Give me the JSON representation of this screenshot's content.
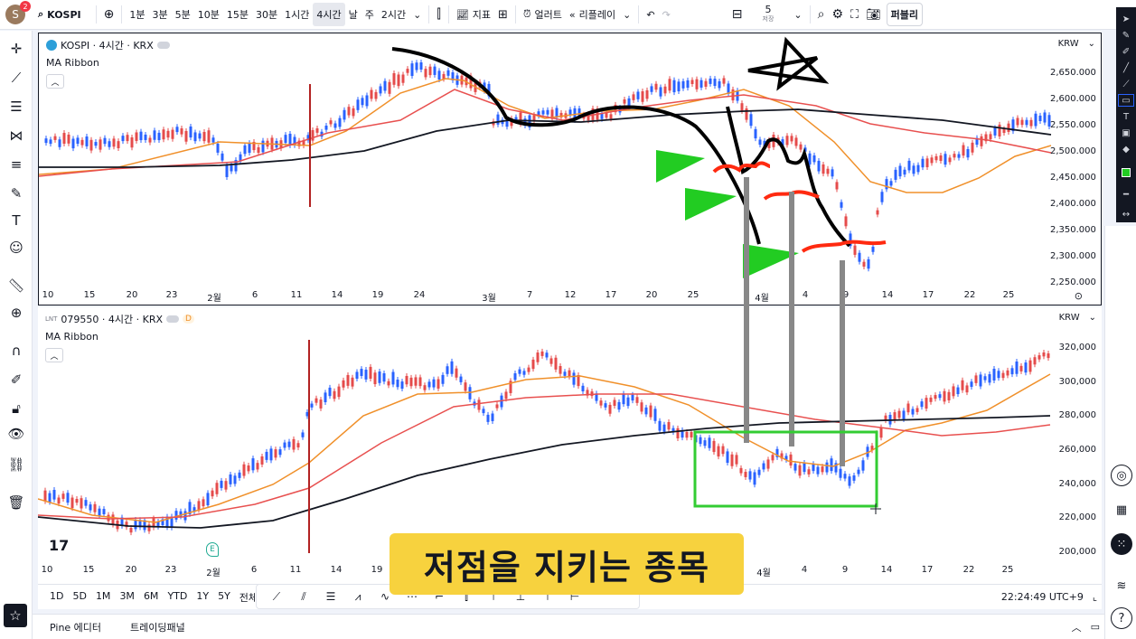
{
  "top": {
    "avatar_letter": "S",
    "notif_count": "2",
    "symbol": "KOSPI",
    "intervals": [
      "1분",
      "3분",
      "5분",
      "10분",
      "15분",
      "30분",
      "1시간",
      "4시간",
      "날",
      "주",
      "2시간"
    ],
    "active_interval": "4시간",
    "indicators_label": "지표",
    "alerts_label": "얼러트",
    "replay_label": "리플레이",
    "layout_num": "5",
    "layout_sub": "저장",
    "publish_label": "퍼블리"
  },
  "pane1": {
    "title": "KOSPI · 4시간 · KRX",
    "indicator": "MA Ribbon",
    "currency": "KRW",
    "yticks": [
      "2,650.000",
      "2,600.000",
      "2,550.000",
      "2,500.000",
      "2,450.000",
      "2,400.000",
      "2,350.000",
      "2,300.000",
      "2,250.000"
    ],
    "xticks": [
      "10",
      "15",
      "20",
      "23",
      "2월",
      "6",
      "11",
      "14",
      "19",
      "24",
      "3월",
      "7",
      "12",
      "17",
      "20",
      "25",
      "4월",
      "4",
      "9",
      "14",
      "17",
      "22",
      "25"
    ]
  },
  "pane2": {
    "title": "079550 · 4시간 · KRX",
    "badge": "D",
    "indicator": "MA Ribbon",
    "currency": "KRW",
    "yticks": [
      "320,000",
      "300,000",
      "280,000",
      "260,000",
      "240,000",
      "220,000",
      "200,000"
    ],
    "xticks": [
      "10",
      "15",
      "20",
      "23",
      "2월",
      "6",
      "11",
      "14",
      "19",
      "4월",
      "4",
      "9",
      "14",
      "17",
      "22",
      "25"
    ],
    "earnings_marker": "E"
  },
  "bottom": {
    "ranges": [
      "1D",
      "5D",
      "1M",
      "3M",
      "6M",
      "YTD",
      "1Y",
      "5Y",
      "전체"
    ],
    "clock": "22:24:49 UTC+9"
  },
  "footer": {
    "tabs": [
      "Pine 에디터",
      "트레이딩패널"
    ]
  },
  "caption": "저점을 지키는 종목",
  "colors": {
    "up": "#e54b4b",
    "down": "#2962ff",
    "ma_orange": "#f0902a",
    "ma_red": "#e8504f",
    "ma_black": "#131722",
    "caption_bg": "#f7d23e",
    "arrow_green": "#22cc22",
    "box_green": "#33cc33"
  }
}
